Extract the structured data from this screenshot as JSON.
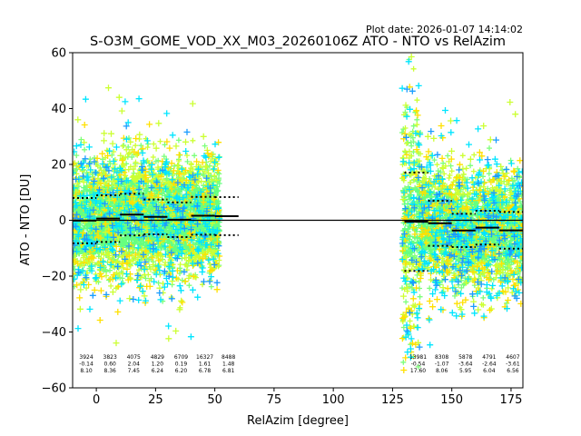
{
  "chart_data": {
    "type": "scatter",
    "plot_date": "Plot date: 2026-01-07 14:14:02",
    "title": "S-O3M_GOME_VOD_XX_M03_20260106Z ATO - NTO vs RelAzim",
    "xlabel": "RelAzim [degree]",
    "ylabel": "ATO - NTO [DU]",
    "xlim": [
      -10,
      180
    ],
    "ylim": [
      -60,
      60
    ],
    "xticks": [
      0,
      25,
      50,
      75,
      100,
      125,
      150,
      175
    ],
    "yticks": [
      -60,
      -40,
      -20,
      0,
      20,
      40,
      60
    ],
    "marker": "+",
    "density_colors": [
      "#66ff80",
      "#7dff7a",
      "#ccff33",
      "#ffe000",
      "#00e5ff",
      "#1a9cff",
      "#0022dd"
    ],
    "zero_line": 0,
    "bins": [
      {
        "x_start": -10,
        "x_end": 0,
        "count": 3924,
        "mean": -0.14,
        "std": 8.1
      },
      {
        "x_start": 0,
        "x_end": 10,
        "count": 3823,
        "mean": 0.6,
        "std": 8.36
      },
      {
        "x_start": 10,
        "x_end": 20,
        "count": 4075,
        "mean": 2.04,
        "std": 7.45
      },
      {
        "x_start": 20,
        "x_end": 30,
        "count": 4829,
        "mean": 1.2,
        "std": 6.24
      },
      {
        "x_start": 30,
        "x_end": 40,
        "count": 6709,
        "mean": 0.19,
        "std": 6.2
      },
      {
        "x_start": 40,
        "x_end": 50,
        "count": 16327,
        "mean": 1.61,
        "std": 6.78
      },
      {
        "x_start": 50,
        "x_end": 60,
        "count": 8488,
        "mean": 1.48,
        "std": 6.81
      },
      {
        "x_start": 130,
        "x_end": 140,
        "count": 13981,
        "mean": -0.54,
        "std": 17.6
      },
      {
        "x_start": 140,
        "x_end": 150,
        "count": 8308,
        "mean": -1.07,
        "std": 8.06
      },
      {
        "x_start": 150,
        "x_end": 160,
        "count": 5878,
        "mean": -3.64,
        "std": 5.95
      },
      {
        "x_start": 160,
        "x_end": 170,
        "count": 4791,
        "mean": -2.64,
        "std": 6.04
      },
      {
        "x_start": 170,
        "x_end": 180,
        "count": 4607,
        "mean": -3.61,
        "std": 6.56
      }
    ],
    "bin_labels": [
      [
        "3924",
        "-0.14",
        "8.10"
      ],
      [
        "3823",
        "0.60",
        "8.36"
      ],
      [
        "4075",
        "2.04",
        "7.45"
      ],
      [
        "4829",
        "1.20",
        "6.24"
      ],
      [
        "6709",
        "0.19",
        "6.20"
      ],
      [
        "16327",
        "1.61",
        "6.78"
      ],
      [
        "8488",
        "1.48",
        "6.81"
      ],
      [
        "13981",
        "-0.54",
        "17.60"
      ],
      [
        "8308",
        "-1.07",
        "8.06"
      ],
      [
        "5878",
        "-3.64",
        "5.95"
      ],
      [
        "4791",
        "-2.64",
        "6.04"
      ],
      [
        "4607",
        "-3.61",
        "6.56"
      ]
    ],
    "scatter_clusters": [
      {
        "x_range": [
          -10,
          52
        ],
        "core": [
          -10,
          12
        ],
        "spread": [
          -28,
          28
        ]
      },
      {
        "x_range": [
          129,
          180
        ],
        "core": [
          -15,
          15
        ],
        "spread": [
          -60,
          58
        ]
      }
    ]
  }
}
